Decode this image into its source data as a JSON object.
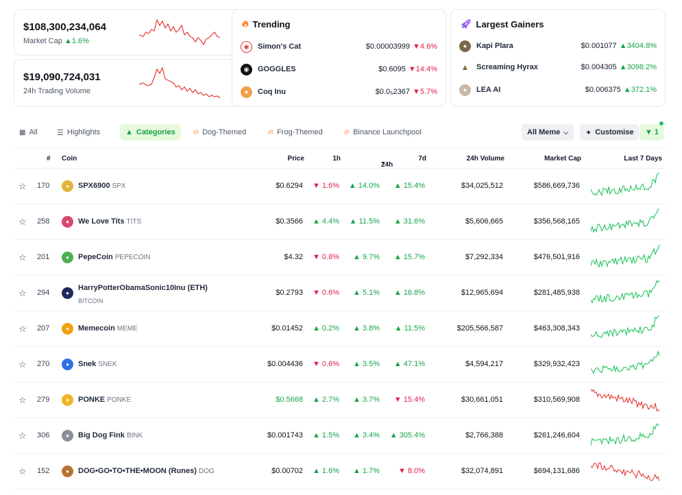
{
  "market_cap": {
    "value": "$108,300,234,064",
    "label": "Market Cap",
    "change": "1.6%"
  },
  "volume": {
    "value": "$19,090,724,031",
    "label": "24h Trading Volume"
  },
  "trending": {
    "title": "Trending",
    "items": [
      {
        "name": "Simon's Cat",
        "price": "$0.00003999",
        "change": "4.6%",
        "dir": "down",
        "price_color": "green"
      },
      {
        "name": "GOGGLES",
        "price": "$0.6095",
        "change": "14.4%",
        "dir": "down",
        "price_color": "dark"
      },
      {
        "name": "Coq Inu",
        "price": "$0.0₅2367",
        "change": "5.7%",
        "dir": "down",
        "price_color": "dark"
      }
    ]
  },
  "gainers": {
    "title": "Largest Gainers",
    "items": [
      {
        "name": "Kapi Plara",
        "price": "$0.001077",
        "change": "3404.8%",
        "dir": "up"
      },
      {
        "name": "Screaming Hyrax",
        "price": "$0.004305",
        "change": "3098.2%",
        "dir": "up"
      },
      {
        "name": "LEA AI",
        "price": "$0.006375",
        "change": "372.1%",
        "dir": "up"
      }
    ]
  },
  "tabs": [
    "All",
    "Highlights",
    "Categories",
    "Dog-Themed",
    "Frog-Themed",
    "Binance Launchpool"
  ],
  "toolbar": {
    "dropdown": "All Meme",
    "customise": "Customise",
    "filter_count": "1"
  },
  "headers": {
    "rank": "#",
    "coin": "Coin",
    "price": "Price",
    "h1": "1h",
    "h24": "24h",
    "d7": "7d",
    "vol": "24h Volume",
    "mcap": "Market Cap",
    "last7": "Last 7 Days"
  },
  "rows": [
    {
      "rank": "170",
      "name": "SPX6900",
      "symbol": "SPX",
      "price": "$0.6294",
      "h1": "1.6%",
      "h1d": "down",
      "h24": "14.0%",
      "h24d": "up",
      "d7": "15.4%",
      "d7d": "up",
      "vol": "$34,025,512",
      "mcap": "$586,669,736",
      "trend": "up",
      "color": "#e0b33a"
    },
    {
      "rank": "258",
      "name": "We Love Tits",
      "symbol": "TITS",
      "price": "$0.3566",
      "h1": "4.4%",
      "h1d": "up",
      "h24": "11.5%",
      "h24d": "up",
      "d7": "31.6%",
      "d7d": "up",
      "vol": "$5,606,665",
      "mcap": "$356,568,165",
      "trend": "up",
      "color": "#d9466f"
    },
    {
      "rank": "201",
      "name": "PepeCoin",
      "symbol": "PEPECOIN",
      "price": "$4.32",
      "h1": "0.8%",
      "h1d": "down",
      "h24": "9.7%",
      "h24d": "up",
      "d7": "15.7%",
      "d7d": "up",
      "vol": "$7,292,334",
      "mcap": "$476,501,916",
      "trend": "up",
      "color": "#4caf50"
    },
    {
      "rank": "294",
      "name": "HarryPotterObamaSonic10Inu (ETH)",
      "symbol": "",
      "sub": "BITCOIN",
      "price": "$0.2793",
      "h1": "0.6%",
      "h1d": "down",
      "h24": "5.1%",
      "h24d": "up",
      "d7": "16.8%",
      "d7d": "up",
      "vol": "$12,965,694",
      "mcap": "$281,485,938",
      "trend": "up",
      "color": "#1f2a5c"
    },
    {
      "rank": "207",
      "name": "Memecoin",
      "symbol": "MEME",
      "price": "$0.01452",
      "h1": "0.2%",
      "h1d": "up",
      "h24": "3.8%",
      "h24d": "up",
      "d7": "11.5%",
      "d7d": "up",
      "vol": "$205,566,587",
      "mcap": "$463,308,343",
      "trend": "up",
      "color": "#f2a20f"
    },
    {
      "rank": "270",
      "name": "Snek",
      "symbol": "SNEK",
      "price": "$0.004436",
      "h1": "0.6%",
      "h1d": "down",
      "h24": "3.5%",
      "h24d": "up",
      "d7": "47.1%",
      "d7d": "up",
      "vol": "$4,594,217",
      "mcap": "$329,932,423",
      "trend": "up",
      "color": "#2f6fe4"
    },
    {
      "rank": "279",
      "name": "PONKE",
      "symbol": "PONKE",
      "price": "$0.5668",
      "price_green": true,
      "h1": "2.7%",
      "h1d": "up",
      "h24": "3.7%",
      "h24d": "up",
      "d7": "15.4%",
      "d7d": "down",
      "vol": "$30,661,051",
      "mcap": "$310,569,908",
      "trend": "down",
      "color": "#f0b429"
    },
    {
      "rank": "306",
      "name": "Big Dog Fink",
      "symbol": "BINK",
      "price": "$0.001743",
      "h1": "1.5%",
      "h1d": "up",
      "h24": "3.4%",
      "h24d": "up",
      "d7": "305.4%",
      "d7d": "up",
      "vol": "$2,766,388",
      "mcap": "$261,246,604",
      "trend": "up",
      "color": "#8a8f98"
    },
    {
      "rank": "152",
      "name": "DOG•GO•TO•THE•MOON (Runes)",
      "symbol": "DOG",
      "price": "$0.00702",
      "h1": "1.6%",
      "h1d": "up",
      "h24": "1.7%",
      "h24d": "up",
      "d7": "8.0%",
      "d7d": "down",
      "vol": "$32,074,891",
      "mcap": "$694,131,686",
      "trend": "down",
      "color": "#b87333"
    }
  ]
}
